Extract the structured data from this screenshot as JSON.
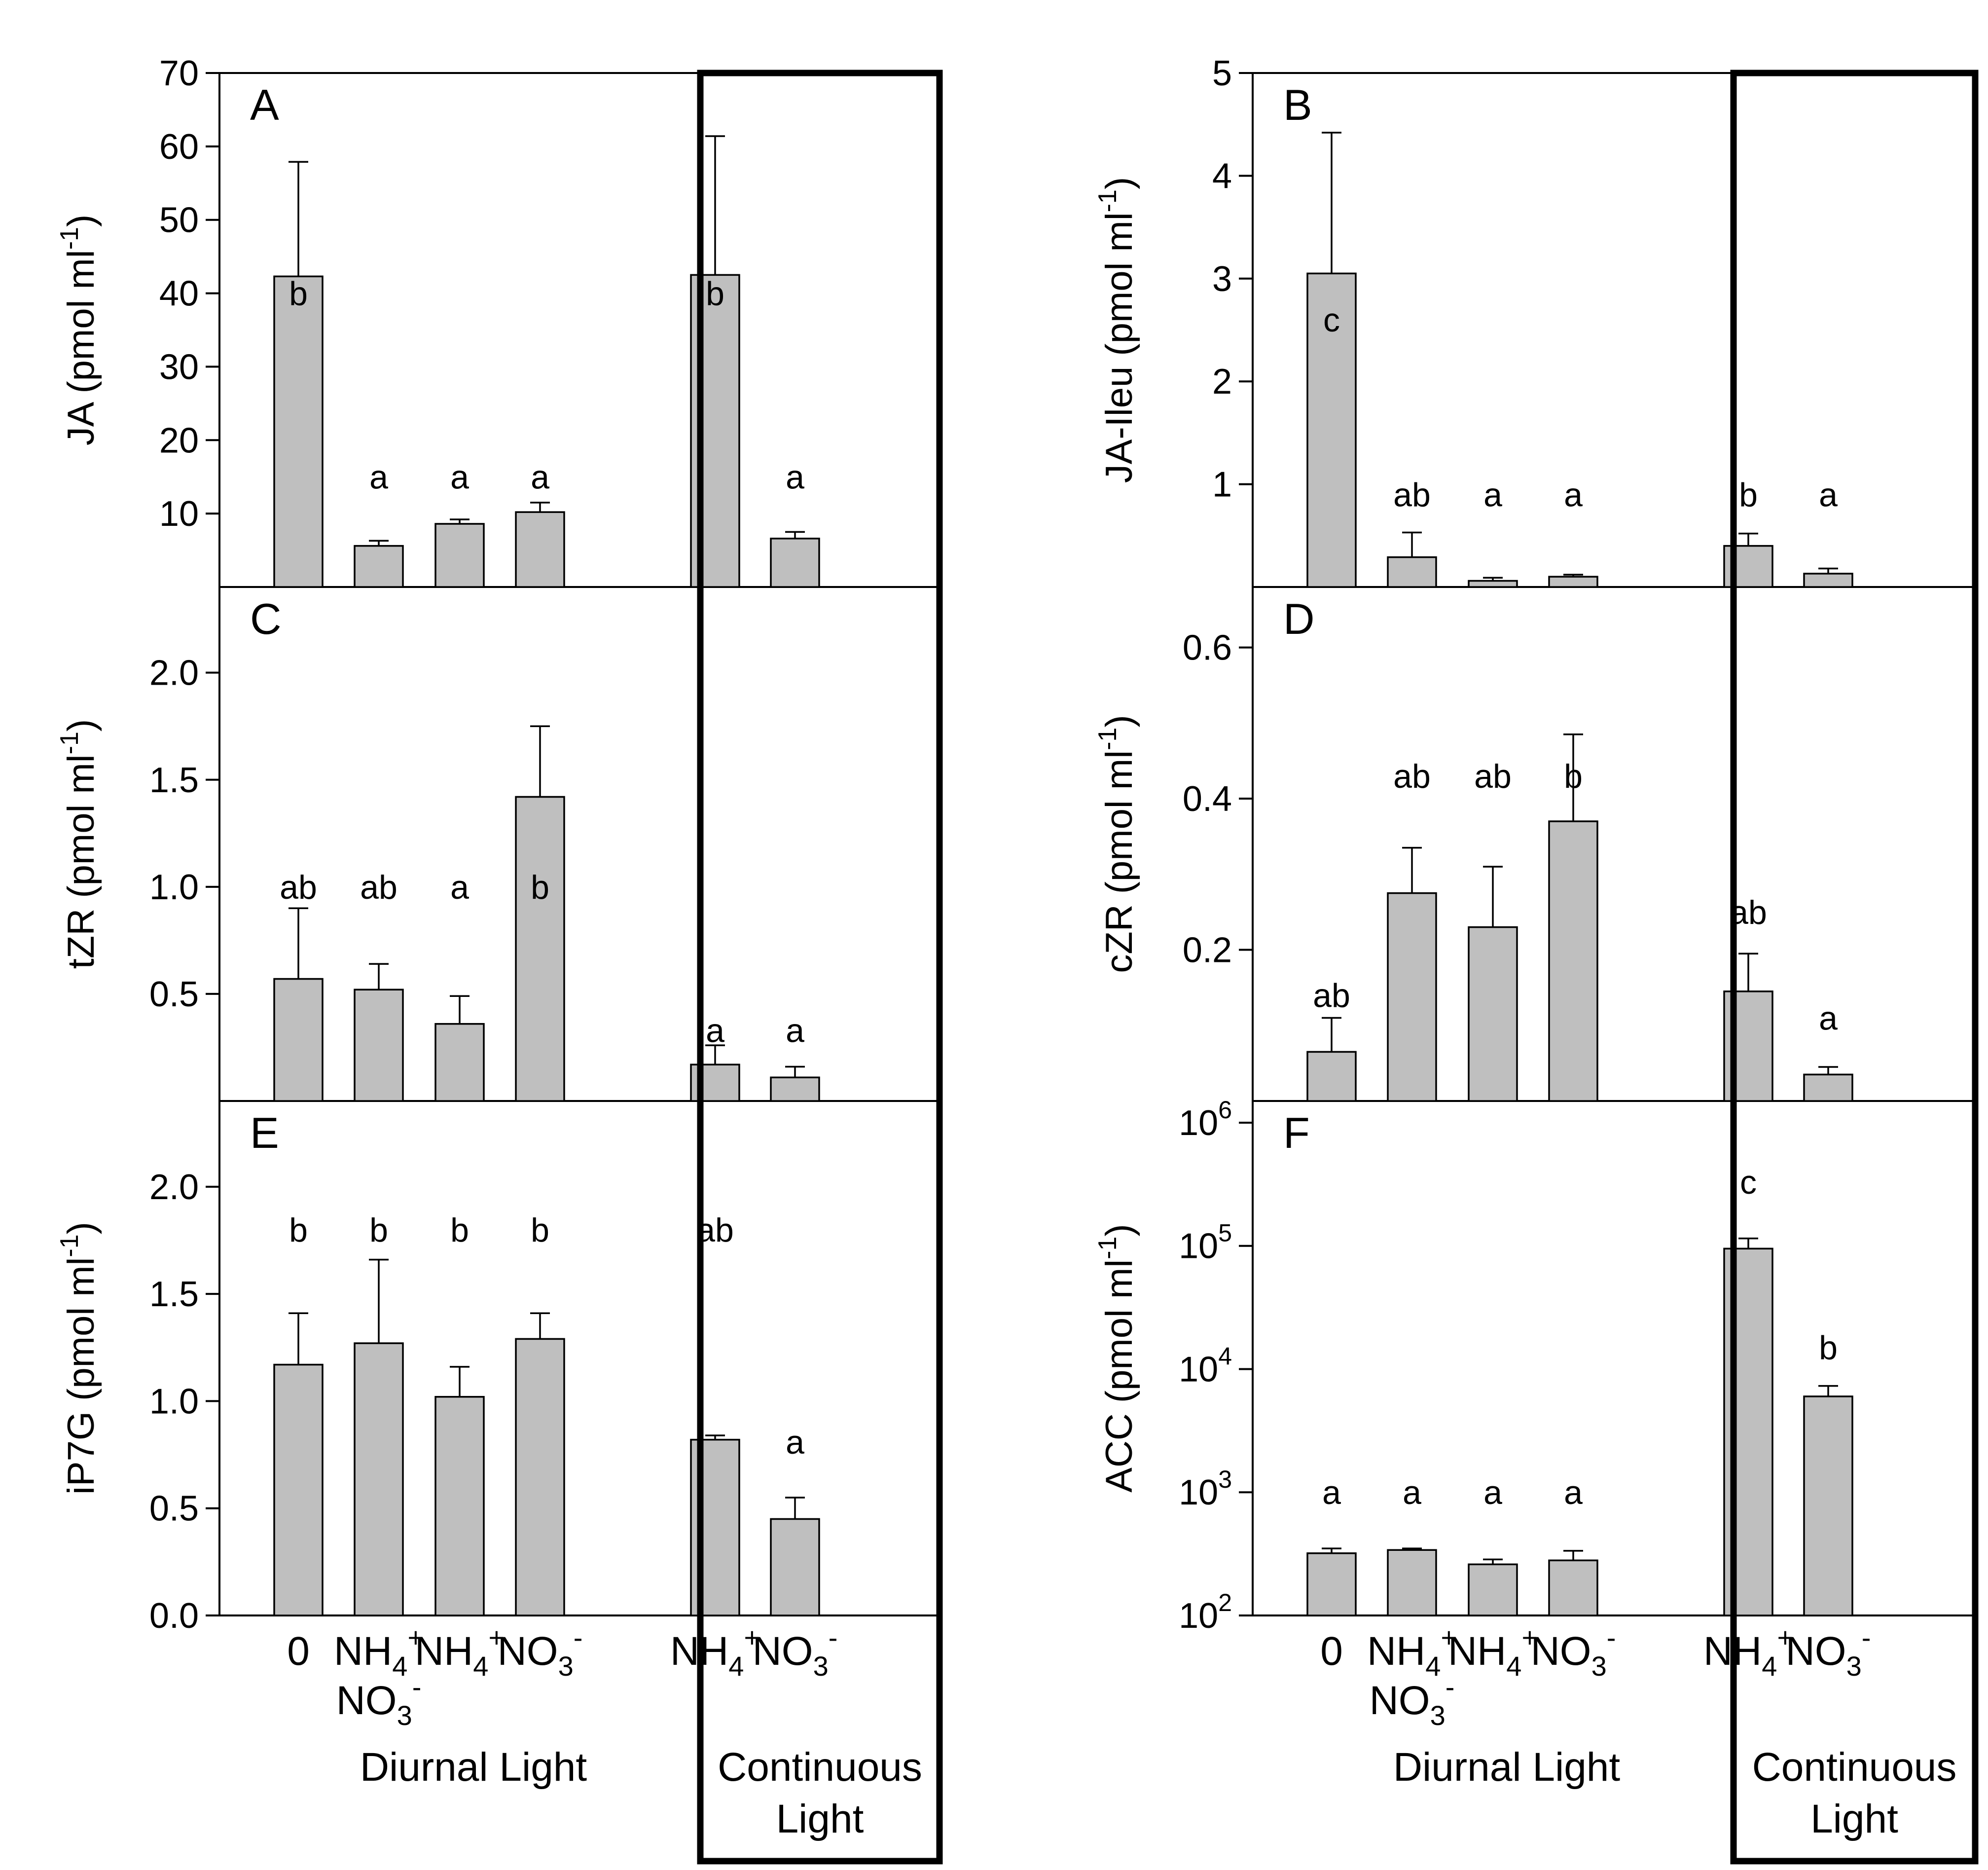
{
  "chart_data": [
    {
      "panel": "A",
      "type": "bar",
      "column": 0,
      "row": 0,
      "ylabel": "JA (pmol ml",
      "ylabel_sup": "-1",
      "ylabel_end": ")",
      "ylim": [
        0,
        70
      ],
      "scale": "linear",
      "ticks": [
        10,
        20,
        30,
        40,
        50,
        60,
        70
      ],
      "tick_labels": [
        "10",
        "20",
        "30",
        "40",
        "50",
        "60",
        "70"
      ],
      "values": [
        42.3,
        5.6,
        null,
        8.6,
        10.2,
        42.5,
        6.6
      ],
      "errors": [
        15.6,
        0.7,
        null,
        0.6,
        1.3,
        18.9,
        0.9
      ],
      "letters": [
        "b",
        "a",
        null,
        "a",
        "a",
        "b",
        "a"
      ],
      "letter_pos": [
        40,
        15,
        null,
        15,
        15,
        40,
        15
      ]
    },
    {
      "panel": "B",
      "type": "bar",
      "column": 1,
      "row": 0,
      "ylabel": "JA-Ileu (pmol ml",
      "ylabel_sup": "-1",
      "ylabel_end": ")",
      "ylim": [
        0,
        5
      ],
      "scale": "linear",
      "ticks": [
        1,
        2,
        3,
        4,
        5
      ],
      "tick_labels": [
        "1",
        "2",
        "3",
        "4",
        "5"
      ],
      "values": [
        3.05,
        0.29,
        null,
        0.06,
        0.1,
        0.4,
        0.13
      ],
      "errors": [
        1.37,
        0.24,
        null,
        0.03,
        0.02,
        0.12,
        0.05
      ],
      "letters": [
        "c",
        "ab",
        null,
        "a",
        "a",
        "b",
        "a"
      ],
      "letter_pos": [
        2.6,
        0.9,
        null,
        0.9,
        0.9,
        0.9,
        0.9
      ]
    },
    {
      "panel": "C",
      "type": "bar",
      "column": 0,
      "row": 1,
      "ylabel": "tZR (pmol ml",
      "ylabel_sup": "-1",
      "ylabel_end": ")",
      "ylim": [
        0,
        2.4
      ],
      "scale": "linear",
      "ticks": [
        0.5,
        1.0,
        1.5,
        2.0
      ],
      "tick_labels": [
        "0.5",
        "1.0",
        "1.5",
        "2.0"
      ],
      "values": [
        0.57,
        0.52,
        null,
        0.36,
        1.42,
        0.17,
        0.11
      ],
      "errors": [
        0.33,
        0.12,
        null,
        0.13,
        0.33,
        0.09,
        0.05
      ],
      "letters": [
        "ab",
        "ab",
        null,
        "a",
        "b",
        "a",
        "a"
      ],
      "letter_pos": [
        1.0,
        1.0,
        null,
        1.0,
        1.0,
        0.33,
        0.33
      ]
    },
    {
      "panel": "D",
      "type": "bar",
      "column": 1,
      "row": 1,
      "ylabel": "cZR (pmol ml",
      "ylabel_sup": "-1",
      "ylabel_end": ")",
      "ylim": [
        0,
        0.68
      ],
      "scale": "linear",
      "ticks": [
        0.2,
        0.4,
        0.6
      ],
      "tick_labels": [
        "0.2",
        "0.4",
        "0.6"
      ],
      "values": [
        0.065,
        0.275,
        null,
        0.23,
        0.37,
        0.145,
        0.035
      ],
      "errors": [
        0.045,
        0.06,
        null,
        0.08,
        0.115,
        0.05,
        0.01
      ],
      "letters": [
        "ab",
        "ab",
        null,
        "ab",
        "b",
        "ab",
        "a"
      ],
      "letter_pos": [
        0.14,
        0.43,
        null,
        0.43,
        0.43,
        0.25,
        0.11
      ]
    },
    {
      "panel": "E",
      "type": "bar",
      "column": 0,
      "row": 2,
      "ylabel": "iP7G (pmol ml",
      "ylabel_sup": "-1",
      "ylabel_end": ")",
      "ylim": [
        0,
        2.4
      ],
      "scale": "linear",
      "ticks": [
        0.0,
        0.5,
        1.0,
        1.5,
        2.0
      ],
      "tick_labels": [
        "0.0",
        "0.5",
        "1.0",
        "1.5",
        "2.0"
      ],
      "values": [
        1.17,
        1.27,
        null,
        1.02,
        1.29,
        0.82,
        0.45
      ],
      "errors": [
        0.24,
        0.39,
        null,
        0.14,
        0.12,
        0.02,
        0.1
      ],
      "letters": [
        "b",
        "b",
        null,
        "b",
        "b",
        "ab",
        "a"
      ],
      "letter_pos": [
        1.8,
        1.8,
        null,
        1.8,
        1.8,
        1.8,
        0.81
      ]
    },
    {
      "panel": "F",
      "type": "bar",
      "column": 1,
      "row": 2,
      "ylabel": "ACC (pmol ml",
      "ylabel_sup": "-1",
      "ylabel_end": ")",
      "ylim": [
        100,
        1500000
      ],
      "scale": "log",
      "ticks": [
        100,
        1000,
        10000,
        100000,
        1000000
      ],
      "tick_labels": [
        {
          "base": "10",
          "exp": "2"
        },
        {
          "base": "10",
          "exp": "3"
        },
        {
          "base": "10",
          "exp": "4"
        },
        {
          "base": "10",
          "exp": "5"
        },
        {
          "base": "10",
          "exp": "6"
        }
      ],
      "values": [
        320,
        340,
        null,
        260,
        280,
        95000,
        6000
      ],
      "errors": [
        30,
        10,
        null,
        25,
        55,
        20000,
        1300
      ],
      "letters": [
        "a",
        "a",
        null,
        "a",
        "a",
        "c",
        "b"
      ],
      "letter_pos": [
        1000,
        1000,
        null,
        1000,
        1000,
        330000,
        15000
      ]
    }
  ],
  "x_axis": {
    "categories": [
      {
        "main": "0",
        "sup": ""
      },
      {
        "main": "NH",
        "sub": "4",
        "sup": "+",
        "line2_main": "NO",
        "line2_sub": "3",
        "line2_sup": "-"
      },
      {
        "main": "",
        "sup": ""
      },
      {
        "main": "NH",
        "sub": "4",
        "sup": "+"
      },
      {
        "main": "NO",
        "sub": "3",
        "sup": "-"
      },
      {
        "main": "NH",
        "sub": "4",
        "sup": "+"
      },
      {
        "main": "NO",
        "sub": "3",
        "sup": "-"
      }
    ],
    "group_diurnal": "Diurnal Light",
    "group_continuous_line1": "Continuous",
    "group_continuous_line2": "Light"
  },
  "colors": {
    "bar_fill": "#bfbfbf",
    "bar_stroke": "#000000"
  }
}
